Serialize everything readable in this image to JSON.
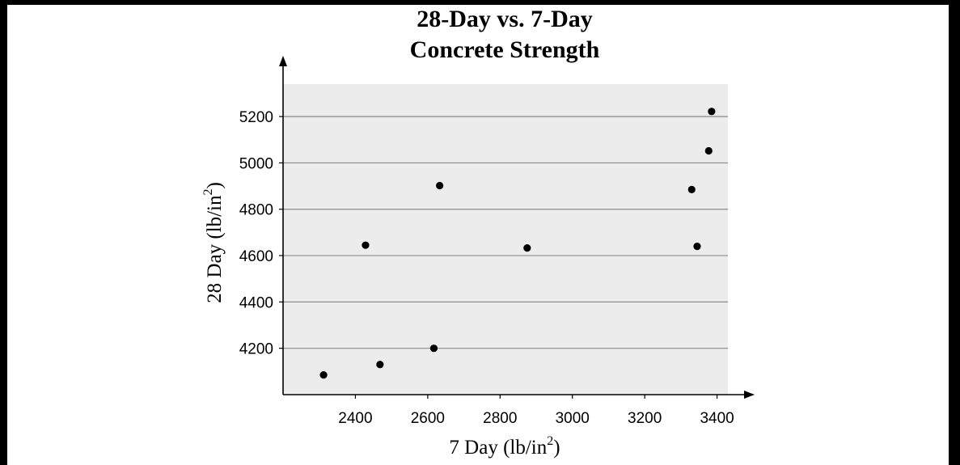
{
  "chart_data": {
    "type": "scatter",
    "title_lines": [
      "28-Day vs. 7-Day",
      "Concrete Strength"
    ],
    "xlabel": {
      "text": "7 Day (lb/in",
      "sup": "2",
      "close": ")"
    },
    "ylabel": {
      "text": "28 Day (lb/in",
      "sup": "2",
      "close": ")"
    },
    "xlim": [
      2200,
      3430
    ],
    "ylim": [
      4000,
      5340
    ],
    "xticks": [
      2400,
      2600,
      2800,
      3000,
      3200,
      3400
    ],
    "yticks": [
      4200,
      4400,
      4600,
      4800,
      5000,
      5200
    ],
    "grid": "horizontal",
    "colors": {
      "background": "#000000",
      "panel": "#ffffff",
      "plot_area": "#ececec",
      "gridline": "#8a8a8a",
      "point": "#000000"
    },
    "points": [
      {
        "x": 2312,
        "y": 4085
      },
      {
        "x": 2428,
        "y": 4645
      },
      {
        "x": 2468,
        "y": 4130
      },
      {
        "x": 2617,
        "y": 4200
      },
      {
        "x": 2633,
        "y": 4902
      },
      {
        "x": 2875,
        "y": 4633
      },
      {
        "x": 3330,
        "y": 4885
      },
      {
        "x": 3345,
        "y": 4640
      },
      {
        "x": 3377,
        "y": 5052
      },
      {
        "x": 3385,
        "y": 5222
      }
    ]
  }
}
